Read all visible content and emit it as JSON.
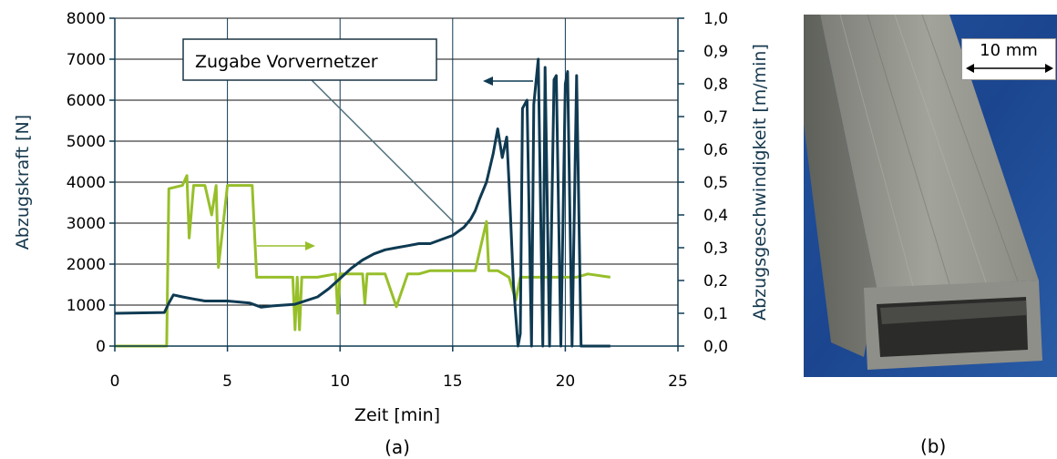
{
  "chart_data": {
    "type": "line",
    "panel_label": "(a)",
    "xlabel": "Zeit   [min]",
    "ylabel_left": "Abzugskraft   [N]",
    "ylabel_right": "Abzugsgeschwindigkeit   [m/min]",
    "xlim": [
      0,
      25
    ],
    "ylim_left": [
      0,
      8000
    ],
    "ylim_right": [
      0,
      1.0
    ],
    "x_ticks": [
      "0",
      "5",
      "10",
      "15",
      "20",
      "25"
    ],
    "y_ticks_left": [
      "0",
      "1000",
      "2000",
      "3000",
      "4000",
      "5000",
      "6000",
      "7000",
      "8000"
    ],
    "y_ticks_right": [
      "0,0",
      "0,1",
      "0,2",
      "0,3",
      "0,4",
      "0,5",
      "0,6",
      "0,7",
      "0,8",
      "0,9",
      "1,0"
    ],
    "grid": true,
    "annotation": "Zugabe Vorvernetzer",
    "series": [
      {
        "axis": "left",
        "color": "#0f3a52",
        "x": [
          0,
          2.2,
          2.4,
          2.6,
          3.0,
          3.5,
          4.0,
          5.0,
          6.0,
          6.5,
          7.0,
          8.0,
          9.0,
          9.5,
          10.0,
          10.5,
          11.0,
          11.5,
          12.0,
          12.5,
          13.0,
          13.5,
          14.0,
          14.5,
          15.0,
          15.5,
          15.8,
          16.0,
          16.2,
          16.5,
          16.8,
          17.0,
          17.2,
          17.4,
          17.5,
          17.7,
          17.9,
          18.0,
          18.1,
          18.3,
          18.5,
          18.6,
          18.8,
          19.0,
          19.1,
          19.3,
          19.5,
          19.6,
          19.8,
          20.0,
          20.1,
          20.3,
          20.5,
          20.7,
          21.0,
          22.0
        ],
        "y": [
          800,
          820,
          1050,
          1250,
          1200,
          1150,
          1100,
          1100,
          1050,
          950,
          980,
          1020,
          1200,
          1400,
          1650,
          1900,
          2100,
          2250,
          2350,
          2400,
          2450,
          2500,
          2500,
          2600,
          2700,
          2900,
          3100,
          3300,
          3600,
          4000,
          4700,
          5300,
          4600,
          5100,
          4000,
          1500,
          0,
          300,
          5800,
          6000,
          0,
          5900,
          7000,
          0,
          6800,
          0,
          6500,
          6600,
          0,
          6400,
          6700,
          0,
          6600,
          0,
          0,
          0
        ]
      },
      {
        "axis": "right",
        "color": "#97bf2a",
        "x": [
          0,
          2.3,
          2.4,
          3.0,
          3.2,
          3.3,
          3.5,
          4.0,
          4.3,
          4.5,
          4.6,
          5.0,
          5.5,
          6.1,
          6.3,
          7.0,
          7.9,
          8.0,
          8.1,
          8.2,
          8.3,
          9.0,
          9.8,
          9.9,
          10.0,
          11.0,
          11.1,
          11.2,
          12.0,
          12.5,
          13.0,
          13.5,
          14.0,
          15.0,
          16.0,
          16.5,
          16.6,
          16.7,
          17.0,
          17.5,
          17.8,
          18.0,
          18.5,
          19.0,
          19.5,
          20.0,
          20.5,
          21.0,
          22.0
        ],
        "y": [
          0,
          0,
          0.48,
          0.49,
          0.52,
          0.33,
          0.49,
          0.49,
          0.4,
          0.49,
          0.24,
          0.49,
          0.49,
          0.49,
          0.21,
          0.21,
          0.21,
          0.05,
          0.21,
          0.05,
          0.21,
          0.21,
          0.22,
          0.1,
          0.22,
          0.22,
          0.13,
          0.22,
          0.22,
          0.12,
          0.22,
          0.22,
          0.23,
          0.23,
          0.23,
          0.38,
          0.23,
          0.23,
          0.23,
          0.21,
          0.14,
          0.21,
          0.21,
          0.21,
          0.21,
          0.21,
          0.21,
          0.22,
          0.21
        ]
      }
    ]
  },
  "photo": {
    "scale_label": "10 mm",
    "panel_label": "(b)",
    "background_color": "#1d4b9a",
    "profile_color": "#8b8c84"
  }
}
